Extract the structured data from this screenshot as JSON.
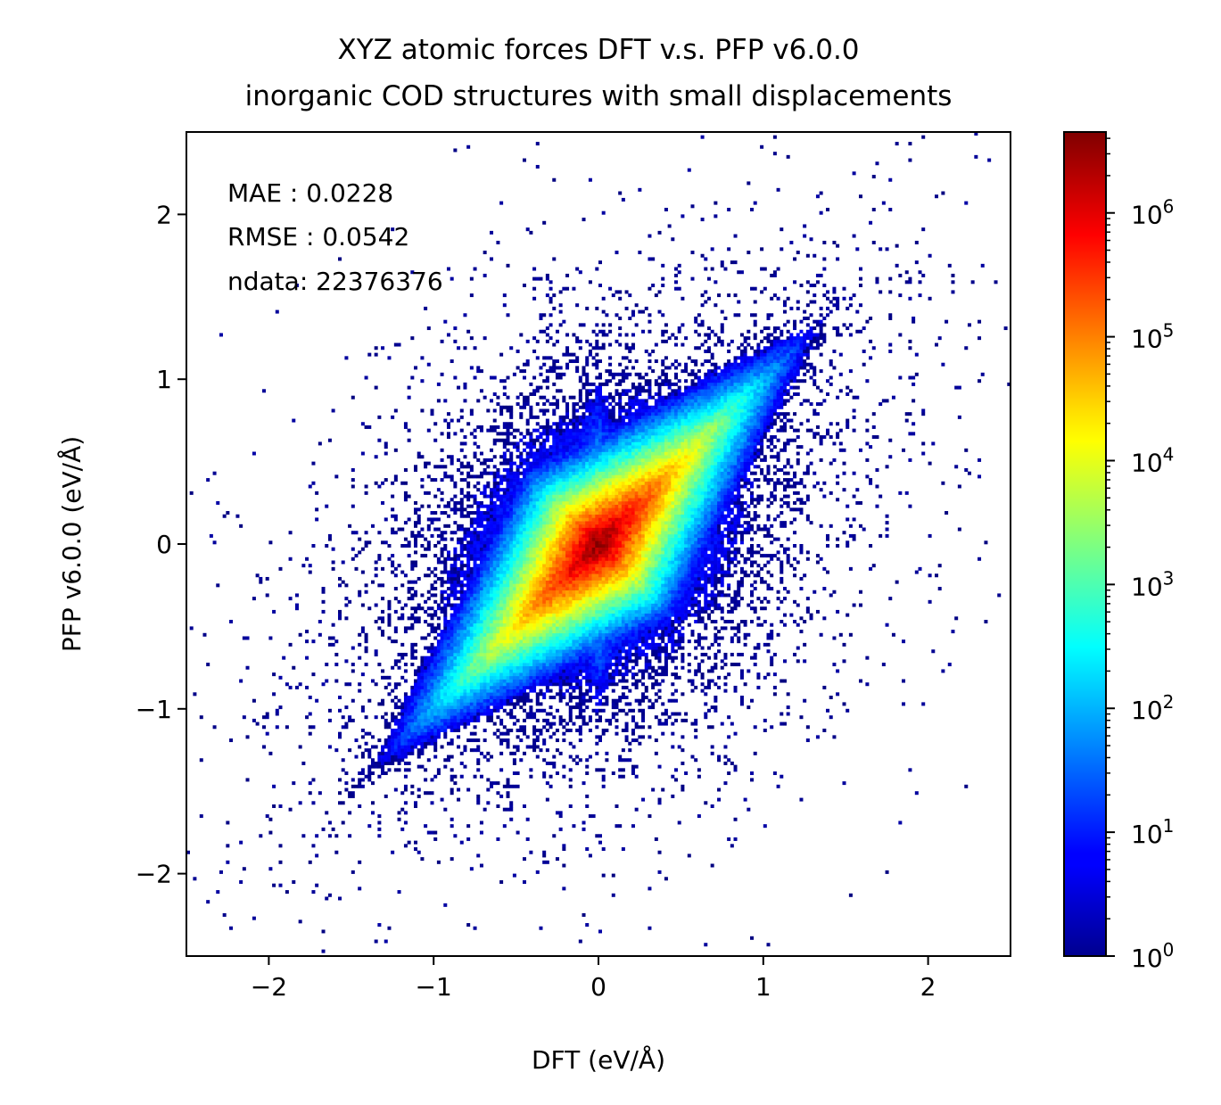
{
  "chart_data": {
    "type": "heatmap",
    "title": "XYZ atomic forces DFT v.s. PFP v6.0.0",
    "subtitle": "inorganic COD structures with small displacements",
    "xlabel": "DFT (eV/Å)",
    "ylabel": "PFP v6.0.0 (eV/Å)",
    "xlim": [
      -2.5,
      2.5
    ],
    "ylim": [
      -2.5,
      2.5
    ],
    "x_ticks": [
      -2,
      -1,
      0,
      1,
      2
    ],
    "y_ticks": [
      -2,
      -1,
      0,
      1,
      2
    ],
    "x_tick_labels": [
      "−2",
      "−1",
      "0",
      "1",
      "2"
    ],
    "y_tick_labels": [
      "−2",
      "−1",
      "0",
      "1",
      "2"
    ],
    "colormap": "jet",
    "color_scale": "log",
    "color_range": [
      1,
      4500000
    ],
    "colorbar_ticks": [
      1,
      10,
      100,
      1000,
      10000,
      100000,
      1000000
    ],
    "colorbar_tick_labels": [
      {
        "base": "10",
        "exp": "0"
      },
      {
        "base": "10",
        "exp": "1"
      },
      {
        "base": "10",
        "exp": "2"
      },
      {
        "base": "10",
        "exp": "3"
      },
      {
        "base": "10",
        "exp": "4"
      },
      {
        "base": "10",
        "exp": "5"
      },
      {
        "base": "10",
        "exp": "6"
      }
    ],
    "annotations": [
      "MAE : 0.0228",
      "RMSE : 0.0542",
      "ndata: 22376376"
    ],
    "metrics": {
      "MAE": 0.0228,
      "RMSE": 0.0542,
      "ndata": 22376376
    },
    "density_peak_count": 4500000,
    "density_peak_at": [
      0,
      0
    ]
  }
}
